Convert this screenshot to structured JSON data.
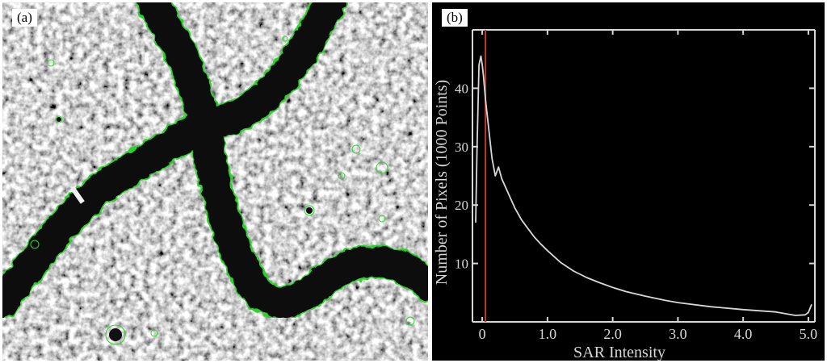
{
  "panel_a": {
    "label": "(a)",
    "colors": {
      "river": "#0c0c0c",
      "contour": "#2fd22f",
      "background_light": "#d9d9d9"
    }
  },
  "panel_b": {
    "label": "(b)"
  },
  "chart_data": {
    "type": "line",
    "title": "",
    "xlabel": "SAR Intensity",
    "ylabel": "Number of Pixels (1000 Points)",
    "xlim": [
      -0.15,
      5.1
    ],
    "ylim": [
      0,
      50
    ],
    "xticks": [
      0,
      1.0,
      2.0,
      3.0,
      4.0,
      5.0
    ],
    "xtick_labels": [
      "0",
      "1.0",
      "2.0",
      "3.0",
      "4.0",
      "5.0"
    ],
    "yticks": [
      10,
      20,
      30,
      40
    ],
    "ytick_labels": [
      "10",
      "20",
      "30",
      "40"
    ],
    "grid": false,
    "threshold_x": 0.05,
    "colors": {
      "line": "#d8d8d8",
      "threshold": "#c0392b",
      "background": "#000000"
    },
    "series": [
      {
        "x": [
          -0.1,
          -0.08,
          -0.05,
          -0.02,
          0.0,
          0.02,
          0.05,
          0.1,
          0.15,
          0.2,
          0.25,
          0.3,
          0.4,
          0.5,
          0.6,
          0.7,
          0.8,
          0.9,
          1.0,
          1.2,
          1.4,
          1.6,
          1.8,
          2.0,
          2.2,
          2.5,
          2.8,
          3.0,
          3.5,
          4.0,
          4.5,
          4.8,
          4.95,
          5.0,
          5.05
        ],
        "y": [
          17,
          30,
          44,
          45.5,
          44,
          42,
          38,
          33,
          28,
          25,
          26.5,
          24.5,
          22,
          19.5,
          17.5,
          16,
          14.5,
          13.3,
          12.2,
          10.2,
          8.7,
          7.6,
          6.7,
          5.9,
          5.2,
          4.4,
          3.7,
          3.3,
          2.6,
          2.1,
          1.7,
          1.1,
          1.2,
          1.6,
          3.0
        ]
      }
    ]
  }
}
